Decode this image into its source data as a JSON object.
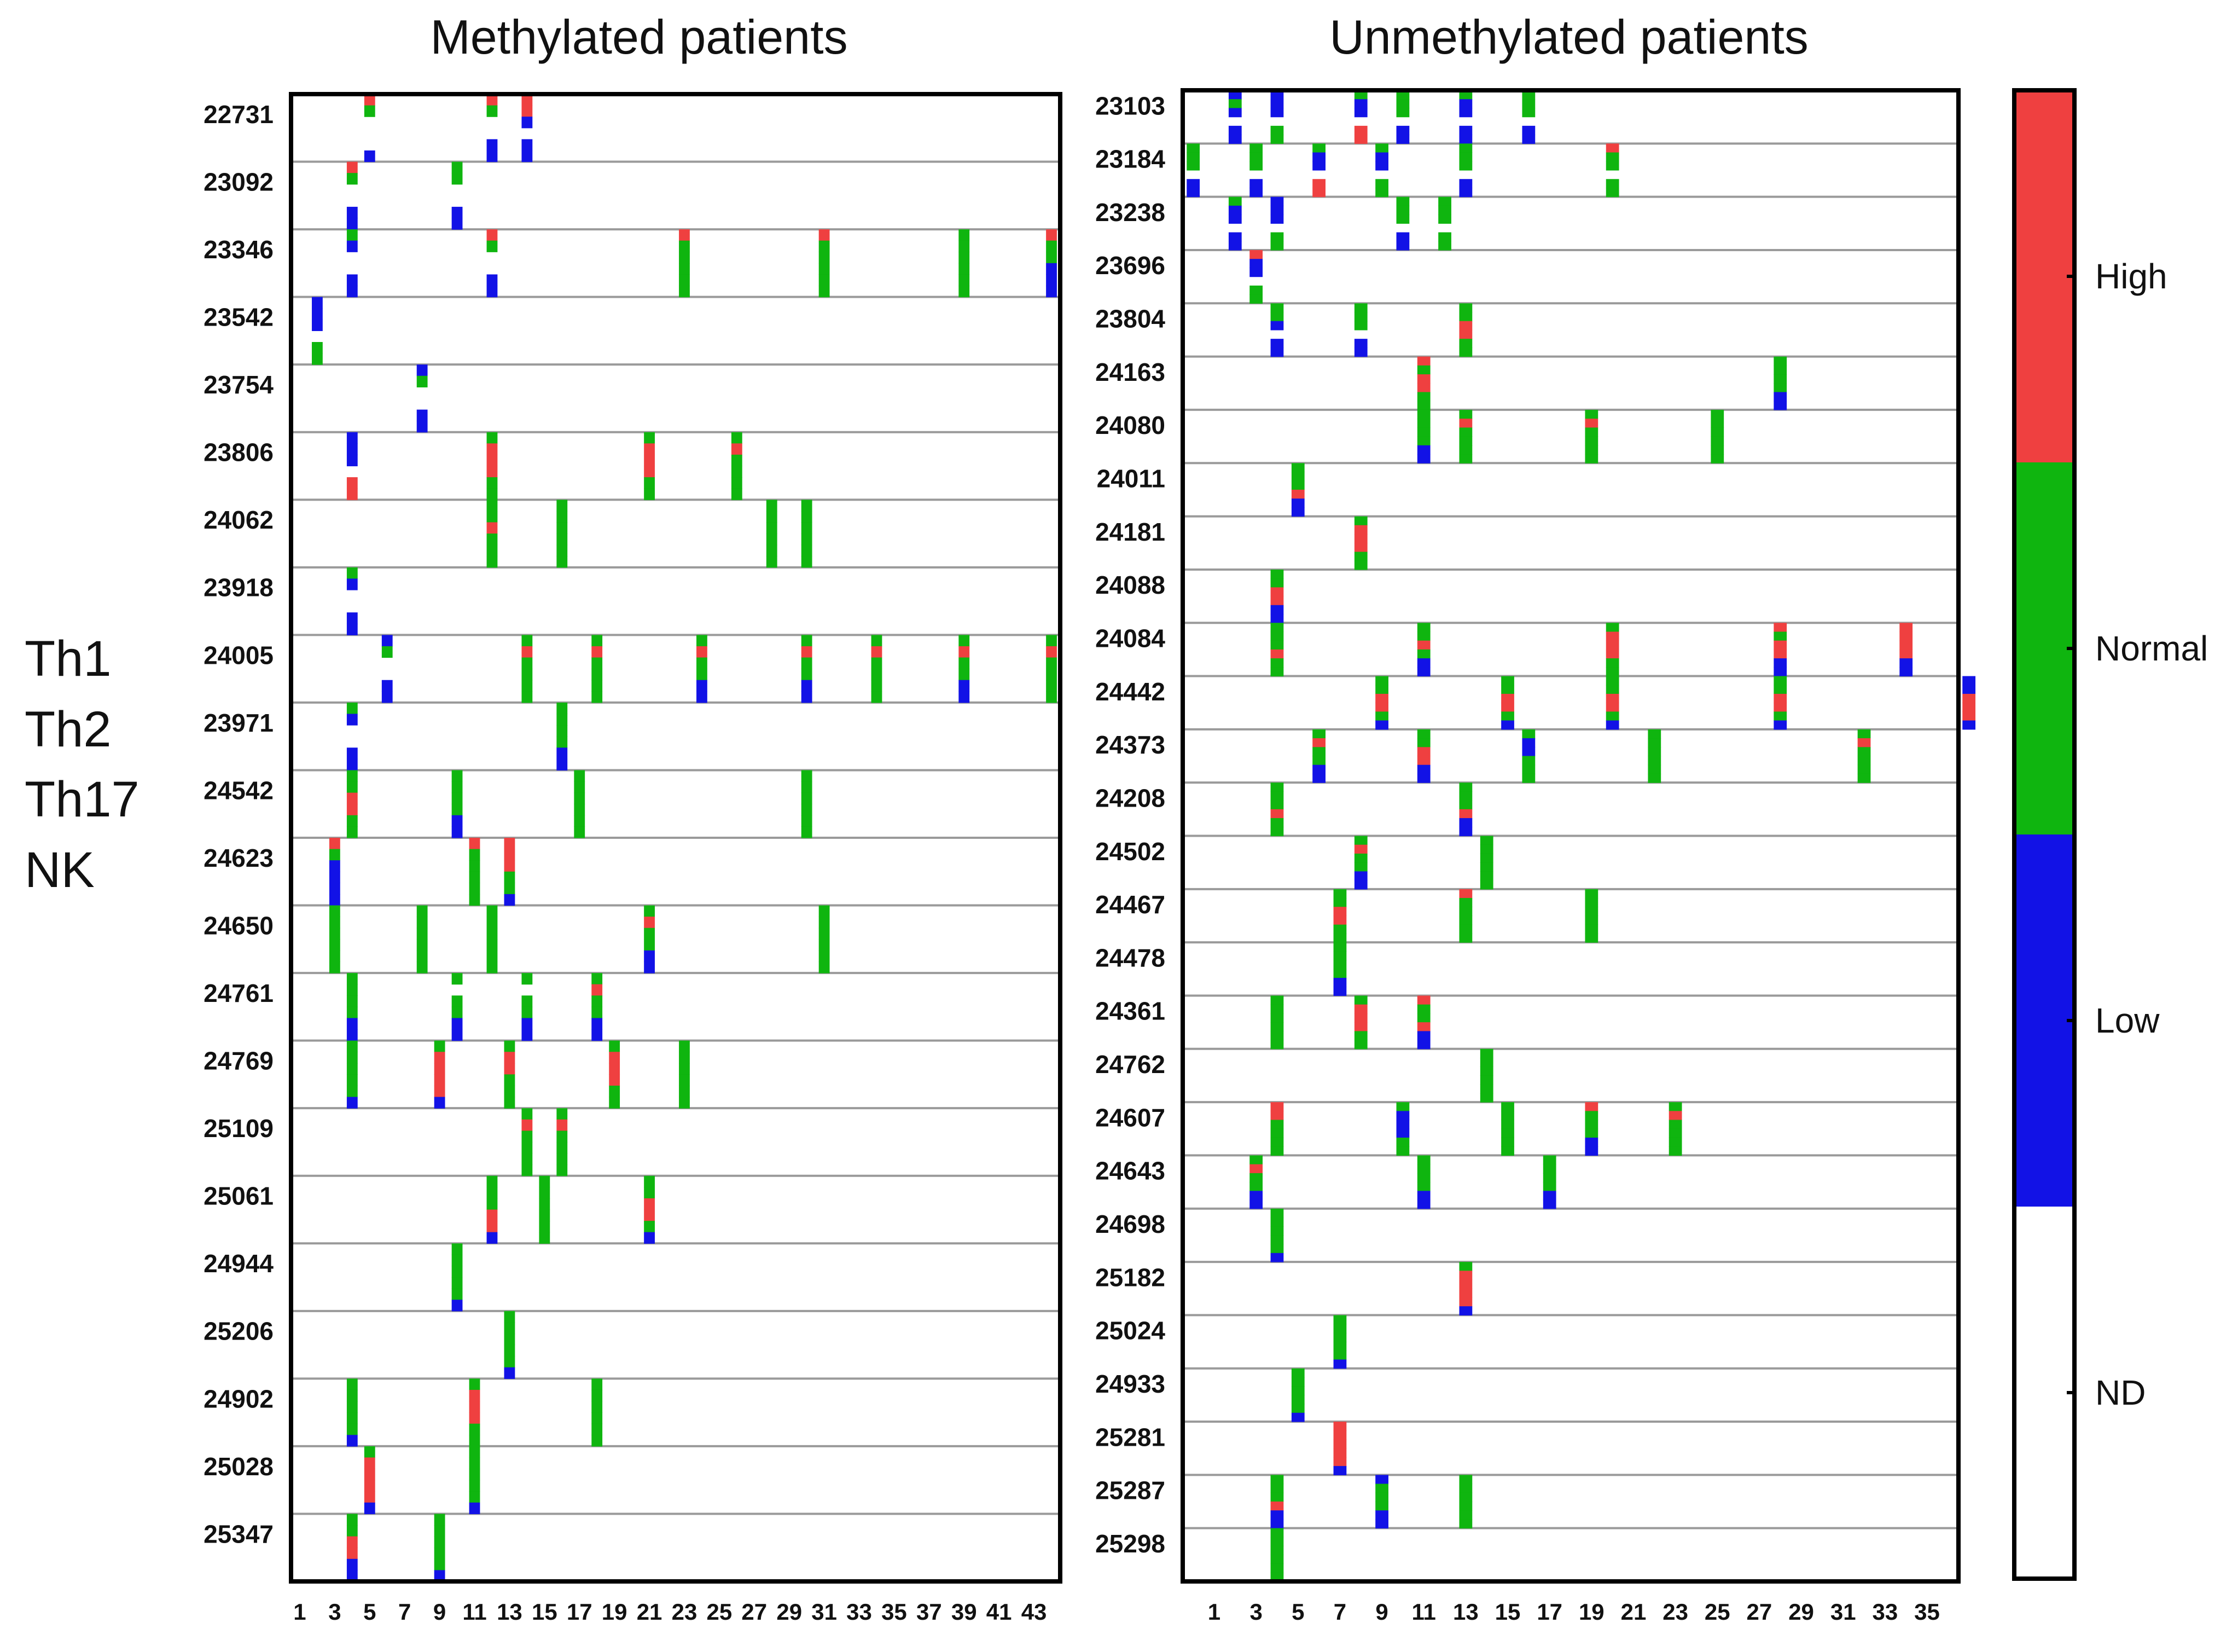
{
  "chart_data": {
    "type": "heatmap",
    "category_colors": {
      "High": "#ef4040",
      "Normal": "#0fb50f",
      "Low": "#1212e6",
      "ND": "#ffffff"
    },
    "cell_types": [
      "Th1",
      "Th2",
      "Th17",
      "NK"
    ],
    "legend": {
      "labels": [
        "High",
        "Normal",
        "Low",
        "ND"
      ],
      "colors": [
        "#ef4040",
        "#0fb50f",
        "#1212e6",
        "#ffffff"
      ]
    },
    "panels": [
      {
        "title": "Methylated patients",
        "x_ticks": [
          "1",
          "3",
          "5",
          "7",
          "9",
          "11",
          "13",
          "15",
          "17",
          "19",
          "21",
          "23",
          "25",
          "27",
          "29",
          "31",
          "33",
          "35",
          "37",
          "39",
          "41",
          "43"
        ],
        "x_range": [
          1,
          44
        ],
        "patients": [
          "22731",
          "23092",
          "23346",
          "23542",
          "23754",
          "23806",
          "24062",
          "23918",
          "24005",
          "23971",
          "24542",
          "24623",
          "24650",
          "24761",
          "24769",
          "25109",
          "25061",
          "24944",
          "25206",
          "24902",
          "25028",
          "25347"
        ],
        "marks": [
          {
            "p": "22731",
            "x": 5,
            "c": "RGNNNB"
          },
          {
            "p": "22731",
            "x": 12,
            "c": "RGNNBB"
          },
          {
            "p": "22731",
            "x": 14,
            "c": "RRBNBB"
          },
          {
            "p": "23092",
            "x": 4,
            "c": "RGNNBB"
          },
          {
            "p": "23092",
            "x": 10,
            "c": "GGNNBB"
          },
          {
            "p": "23346",
            "x": 4,
            "c": "GBNNBB"
          },
          {
            "p": "23346",
            "x": 12,
            "c": "RGNNBB"
          },
          {
            "p": "23346",
            "x": 23,
            "c": "RGGGGG"
          },
          {
            "p": "23346",
            "x": 31,
            "c": "RGGGGG"
          },
          {
            "p": "23346",
            "x": 39,
            "c": "GGGGGG"
          },
          {
            "p": "23346",
            "x": 44,
            "c": "RGGBBB"
          },
          {
            "p": "23542",
            "x": 2,
            "c": "BBBNGG"
          },
          {
            "p": "23754",
            "x": 8,
            "c": "BGNNBB"
          },
          {
            "p": "23806",
            "x": 4,
            "c": "BBBNRR"
          },
          {
            "p": "23806",
            "x": 12,
            "c": "GRRRGG"
          },
          {
            "p": "23806",
            "x": 21,
            "c": "GRRRGG"
          },
          {
            "p": "23806",
            "x": 26,
            "c": "GRGGGG"
          },
          {
            "p": "24062",
            "x": 12,
            "c": "GGRGGG"
          },
          {
            "p": "24062",
            "x": 16,
            "c": "GGGGGG"
          },
          {
            "p": "24062",
            "x": 28,
            "c": "GGGGGG"
          },
          {
            "p": "24062",
            "x": 30,
            "c": "GGGGGG"
          },
          {
            "p": "23918",
            "x": 4,
            "c": "GBNNBB"
          },
          {
            "p": "24005",
            "x": 6,
            "c": "BGNNBB"
          },
          {
            "p": "24005",
            "x": 14,
            "c": "GRGGGG"
          },
          {
            "p": "24005",
            "x": 18,
            "c": "GRGGGG"
          },
          {
            "p": "24005",
            "x": 24,
            "c": "GRGGBB"
          },
          {
            "p": "24005",
            "x": 30,
            "c": "GRGGBB"
          },
          {
            "p": "24005",
            "x": 34,
            "c": "GRGGGG"
          },
          {
            "p": "24005",
            "x": 39,
            "c": "GRGGBB"
          },
          {
            "p": "24005",
            "x": 44,
            "c": "GRGGGG"
          },
          {
            "p": "23971",
            "x": 4,
            "c": "GBNNBB"
          },
          {
            "p": "23971",
            "x": 16,
            "c": "GGGGBB"
          },
          {
            "p": "24542",
            "x": 4,
            "c": "GGRRGG"
          },
          {
            "p": "24542",
            "x": 10,
            "c": "GGGGBB"
          },
          {
            "p": "24542",
            "x": 17,
            "c": "GGGGGG"
          },
          {
            "p": "24542",
            "x": 30,
            "c": "GGGGGG"
          },
          {
            "p": "24623",
            "x": 3,
            "c": "RGBBBB"
          },
          {
            "p": "24623",
            "x": 11,
            "c": "RGGGGG"
          },
          {
            "p": "24623",
            "x": 13,
            "c": "RRRGGB"
          },
          {
            "p": "24650",
            "x": 3,
            "c": "GGGGGG"
          },
          {
            "p": "24650",
            "x": 8,
            "c": "GGGGGG"
          },
          {
            "p": "24650",
            "x": 12,
            "c": "GGGGGG"
          },
          {
            "p": "24650",
            "x": 21,
            "c": "GRGGBB"
          },
          {
            "p": "24650",
            "x": 31,
            "c": "GGGGGG"
          },
          {
            "p": "24761",
            "x": 4,
            "c": "GGGGBB"
          },
          {
            "p": "24761",
            "x": 10,
            "c": "GNGGBB"
          },
          {
            "p": "24761",
            "x": 14,
            "c": "GNGGBB"
          },
          {
            "p": "24761",
            "x": 18,
            "c": "GRGGBB"
          },
          {
            "p": "24769",
            "x": 4,
            "c": "GGGGGB"
          },
          {
            "p": "24769",
            "x": 9,
            "c": "GRRRRB"
          },
          {
            "p": "24769",
            "x": 13,
            "c": "GRRGGG"
          },
          {
            "p": "24769",
            "x": 19,
            "c": "GRRRGG"
          },
          {
            "p": "24769",
            "x": 23,
            "c": "GGGGGG"
          },
          {
            "p": "25109",
            "x": 14,
            "c": "GRGGGG"
          },
          {
            "p": "25109",
            "x": 16,
            "c": "GRGGGG"
          },
          {
            "p": "25061",
            "x": 12,
            "c": "GGGRRB"
          },
          {
            "p": "25061",
            "x": 15,
            "c": "GGGGGG"
          },
          {
            "p": "25061",
            "x": 21,
            "c": "GGRRGB"
          },
          {
            "p": "24944",
            "x": 10,
            "c": "GGGGGB"
          },
          {
            "p": "25206",
            "x": 13,
            "c": "GGGGGB"
          },
          {
            "p": "24902",
            "x": 4,
            "c": "GGGGGB"
          },
          {
            "p": "24902",
            "x": 11,
            "c": "GRRRGG"
          },
          {
            "p": "24902",
            "x": 18,
            "c": "GGGGGG"
          },
          {
            "p": "25028",
            "x": 5,
            "c": "GRRRRB"
          },
          {
            "p": "25028",
            "x": 11,
            "c": "GGGGGB"
          },
          {
            "p": "25347",
            "x": 4,
            "c": "GGRRBB"
          },
          {
            "p": "25347",
            "x": 9,
            "c": "GGGGGB"
          }
        ]
      },
      {
        "title": "Unmethylated patients",
        "x_ticks": [
          "1",
          "3",
          "5",
          "7",
          "9",
          "11",
          "13",
          "15",
          "17",
          "19",
          "21",
          "23",
          "25",
          "27",
          "29",
          "31",
          "33",
          "35"
        ],
        "x_range": [
          0,
          36
        ],
        "patients": [
          "23103",
          "23184",
          "23238",
          "23696",
          "23804",
          "24163",
          "24080",
          "24011",
          "24181",
          "24088",
          "24084",
          "24442",
          "24373",
          "24208",
          "24502",
          "24467",
          "24478",
          "24361",
          "24762",
          "24607",
          "24643",
          "24698",
          "25182",
          "25024",
          "24933",
          "25281",
          "25287",
          "25298"
        ],
        "marks": [
          {
            "p": "23103",
            "x": 2,
            "c": "BGBNBB"
          },
          {
            "p": "23103",
            "x": 4,
            "c": "BBBNGG"
          },
          {
            "p": "23103",
            "x": 8,
            "c": "GBBNRR"
          },
          {
            "p": "23103",
            "x": 10,
            "c": "GGGNBB"
          },
          {
            "p": "23103",
            "x": 13,
            "c": "GBBNBB"
          },
          {
            "p": "23103",
            "x": 16,
            "c": "GGGNBB"
          },
          {
            "p": "23184",
            "x": 0,
            "c": "GGGNBB"
          },
          {
            "p": "23184",
            "x": 3,
            "c": "GGGNBB"
          },
          {
            "p": "23184",
            "x": 6,
            "c": "GBBNRR"
          },
          {
            "p": "23184",
            "x": 9,
            "c": "GBBNGG"
          },
          {
            "p": "23184",
            "x": 13,
            "c": "GGGNBB"
          },
          {
            "p": "23184",
            "x": 20,
            "c": "RGGNGG"
          },
          {
            "p": "23238",
            "x": 2,
            "c": "GBBNBB"
          },
          {
            "p": "23238",
            "x": 4,
            "c": "BBBNGG"
          },
          {
            "p": "23238",
            "x": 10,
            "c": "GGGNBB"
          },
          {
            "p": "23238",
            "x": 12,
            "c": "GGGNGG"
          },
          {
            "p": "23696",
            "x": 3,
            "c": "RBBNGG"
          },
          {
            "p": "23804",
            "x": 4,
            "c": "GGBNBB"
          },
          {
            "p": "23804",
            "x": 8,
            "c": "GGGNBB"
          },
          {
            "p": "23804",
            "x": 13,
            "c": "GGRRGG"
          },
          {
            "p": "24163",
            "x": 11,
            "c": "RGRRGG"
          },
          {
            "p": "24163",
            "x": 28,
            "c": "GGGGBB"
          },
          {
            "p": "24080",
            "x": 11,
            "c": "GGGGBB"
          },
          {
            "p": "24080",
            "x": 13,
            "c": "GRGGGG"
          },
          {
            "p": "24080",
            "x": 19,
            "c": "GRGGGG"
          },
          {
            "p": "24080",
            "x": 25,
            "c": "GGGGGG"
          },
          {
            "p": "24011",
            "x": 5,
            "c": "GGGRBB"
          },
          {
            "p": "24181",
            "x": 8,
            "c": "GRRRGG"
          },
          {
            "p": "24088",
            "x": 4,
            "c": "GGRRBB"
          },
          {
            "p": "24084",
            "x": 4,
            "c": "GGGRGG"
          },
          {
            "p": "24084",
            "x": 11,
            "c": "GGRGBB"
          },
          {
            "p": "24084",
            "x": 20,
            "c": "GRRRGG"
          },
          {
            "p": "24084",
            "x": 28,
            "c": "RGRRBB"
          },
          {
            "p": "24084",
            "x": 34,
            "c": "RRRRBB"
          },
          {
            "p": "24442",
            "x": 9,
            "c": "GGRRGB"
          },
          {
            "p": "24442",
            "x": 15,
            "c": "GGRRGB"
          },
          {
            "p": "24442",
            "x": 20,
            "c": "GGRRGB"
          },
          {
            "p": "24442",
            "x": 28,
            "c": "GGRRGB"
          },
          {
            "p": "24442",
            "x": 37,
            "c": "BBRRRB"
          },
          {
            "p": "24373",
            "x": 6,
            "c": "GRGGBB"
          },
          {
            "p": "24373",
            "x": 11,
            "c": "GGRRBB"
          },
          {
            "p": "24373",
            "x": 16,
            "c": "GBBGGG"
          },
          {
            "p": "24373",
            "x": 22,
            "c": "GGGGGG"
          },
          {
            "p": "24373",
            "x": 32,
            "c": "GRGGGG"
          },
          {
            "p": "24208",
            "x": 4,
            "c": "GGGRGG"
          },
          {
            "p": "24208",
            "x": 13,
            "c": "GGGRBB"
          },
          {
            "p": "24502",
            "x": 8,
            "c": "GRGGBB"
          },
          {
            "p": "24502",
            "x": 14,
            "c": "GGGGGG"
          },
          {
            "p": "24467",
            "x": 7,
            "c": "GGRRGG"
          },
          {
            "p": "24467",
            "x": 13,
            "c": "RGGGGG"
          },
          {
            "p": "24467",
            "x": 19,
            "c": "GGGGGG"
          },
          {
            "p": "24478",
            "x": 7,
            "c": "GGGGBB"
          },
          {
            "p": "24361",
            "x": 4,
            "c": "GGGGGG"
          },
          {
            "p": "24361",
            "x": 8,
            "c": "GRRRGG"
          },
          {
            "p": "24361",
            "x": 11,
            "c": "RGGRBB"
          },
          {
            "p": "24762",
            "x": 14,
            "c": "GGGGGG"
          },
          {
            "p": "24607",
            "x": 4,
            "c": "RRGGGG"
          },
          {
            "p": "24607",
            "x": 10,
            "c": "GBBBGG"
          },
          {
            "p": "24607",
            "x": 15,
            "c": "GGGGGG"
          },
          {
            "p": "24607",
            "x": 19,
            "c": "RGGGBB"
          },
          {
            "p": "24607",
            "x": 23,
            "c": "GRGGGG"
          },
          {
            "p": "24643",
            "x": 3,
            "c": "GRGGBB"
          },
          {
            "p": "24643",
            "x": 11,
            "c": "GGGGBB"
          },
          {
            "p": "24643",
            "x": 17,
            "c": "GGGGBB"
          },
          {
            "p": "24698",
            "x": 4,
            "c": "GGGGGB"
          },
          {
            "p": "25182",
            "x": 13,
            "c": "GRRRRB"
          },
          {
            "p": "25024",
            "x": 7,
            "c": "GGGGGB"
          },
          {
            "p": "24933",
            "x": 5,
            "c": "GGGGGB"
          },
          {
            "p": "25281",
            "x": 7,
            "c": "RRRRRB"
          },
          {
            "p": "25287",
            "x": 4,
            "c": "GGGRBB"
          },
          {
            "p": "25287",
            "x": 9,
            "c": "BGGGBB"
          },
          {
            "p": "25287",
            "x": 13,
            "c": "GGGGGG"
          },
          {
            "p": "25298",
            "x": 4,
            "c": "GGGGGG"
          }
        ]
      }
    ]
  }
}
